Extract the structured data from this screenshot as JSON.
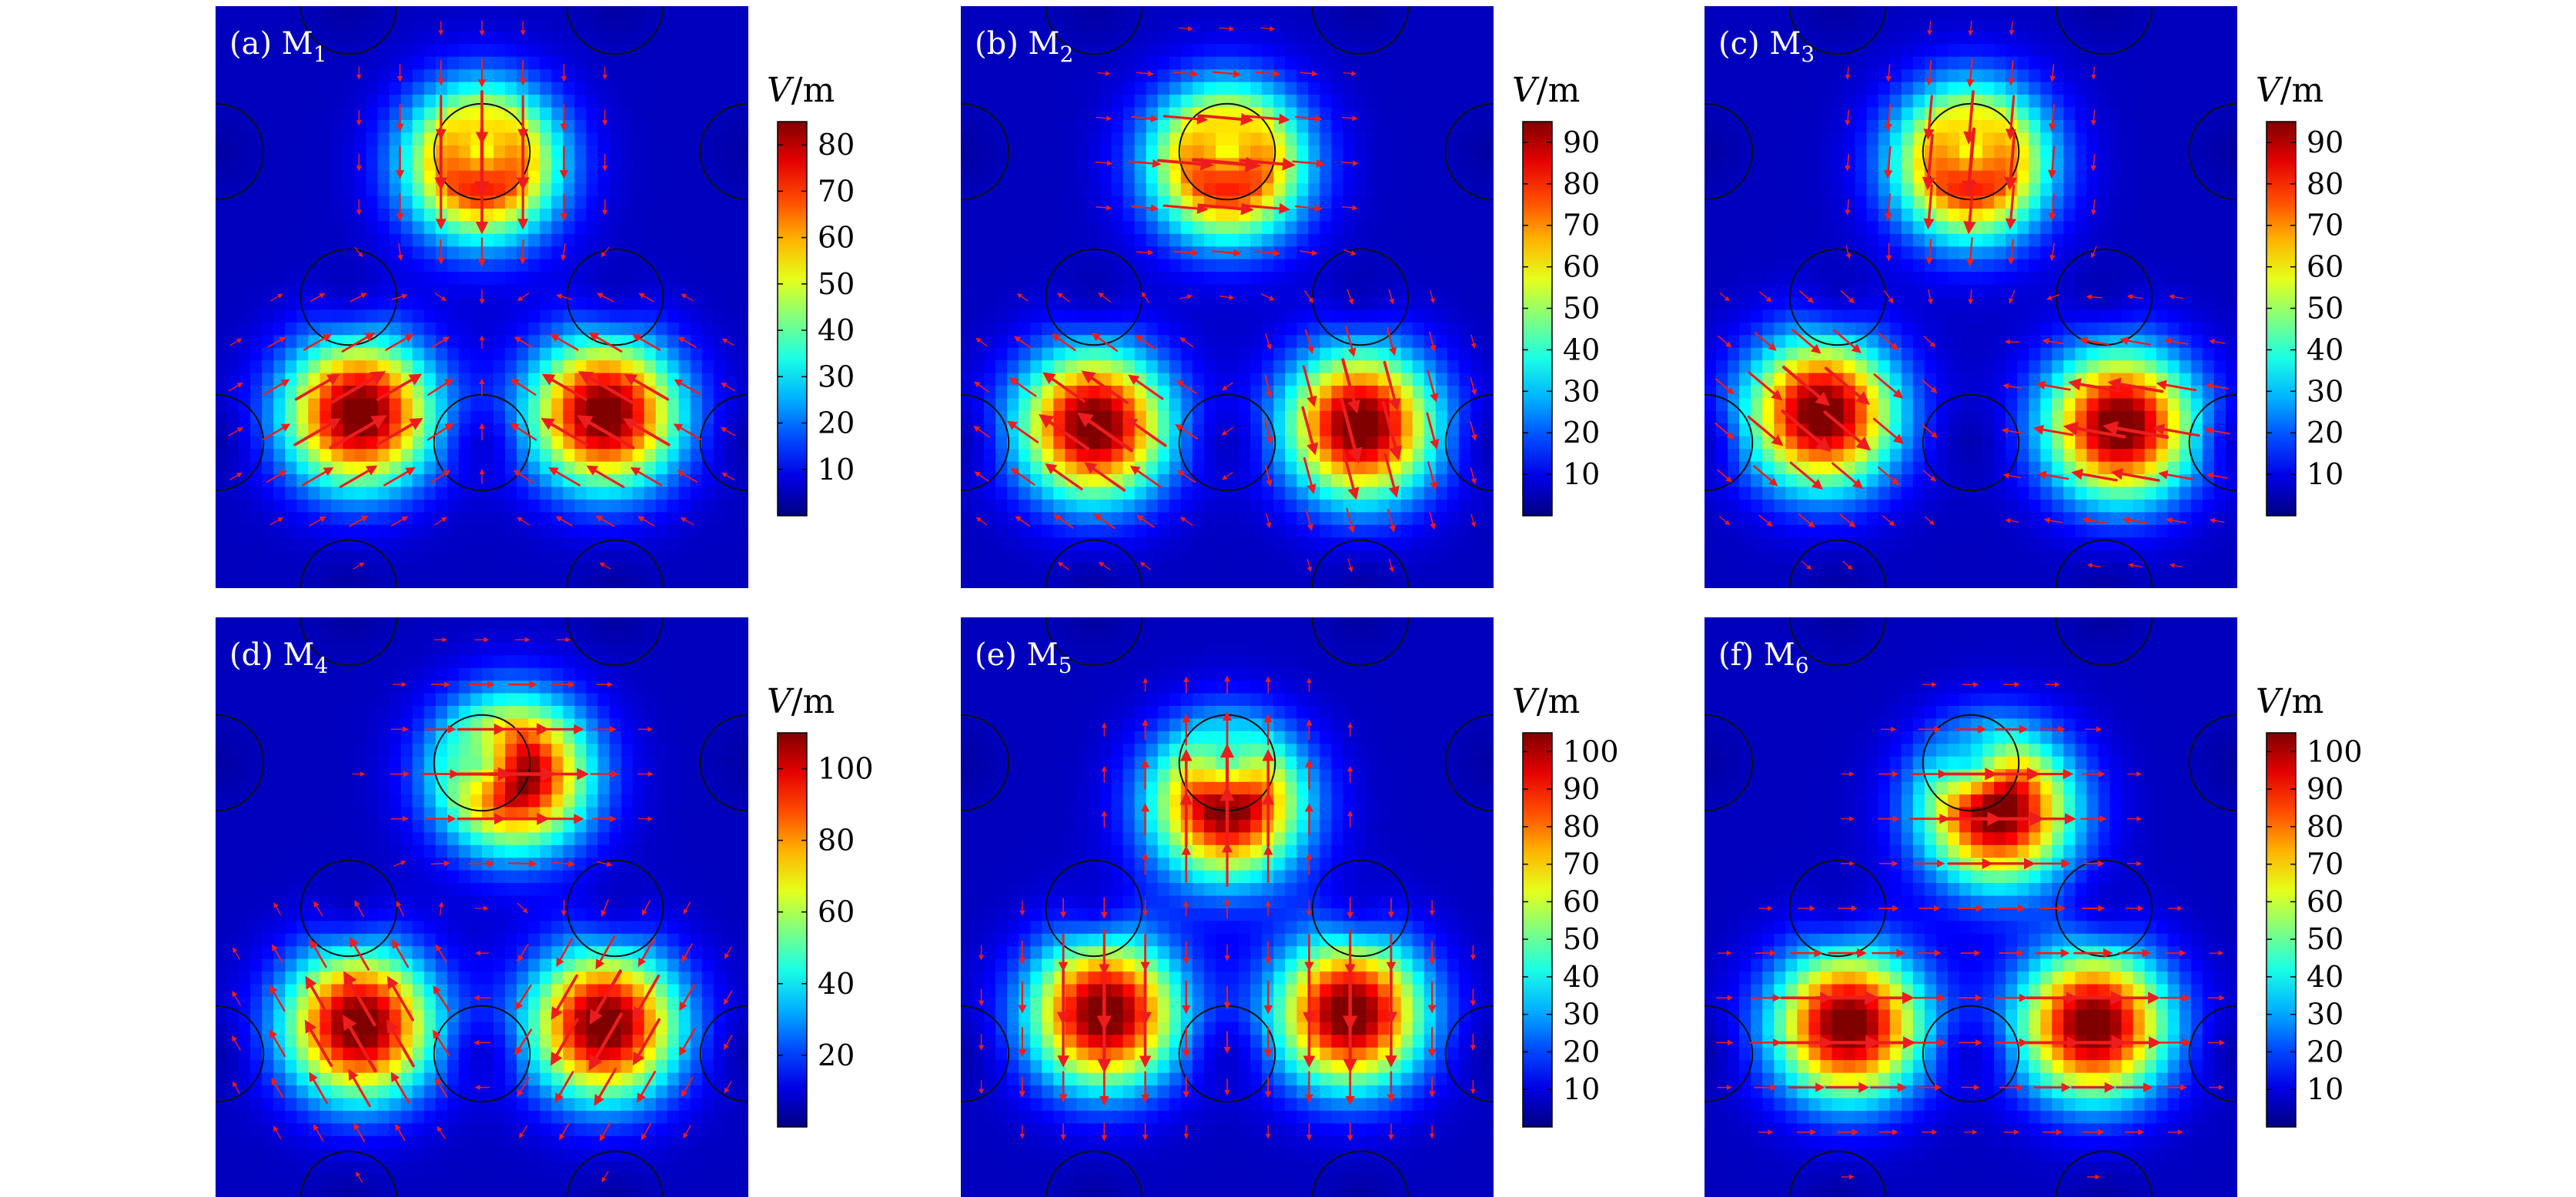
{
  "figure": {
    "colorbar_unit_prefix": "V",
    "colorbar_unit_suffix": "/m"
  },
  "chart_data": [
    {
      "type": "heatmap",
      "panel_label": "(a)",
      "mode_name": "M",
      "mode_index": "1",
      "colorbar_ticks": [
        10,
        20,
        30,
        40,
        50,
        60,
        70,
        80
      ],
      "colorbar_range": [
        0,
        85
      ],
      "lobes": [
        {
          "x": 0.5,
          "y": 0.27,
          "strength": 85,
          "field_angle_deg": 90
        },
        {
          "x": 0.27,
          "y": 0.7,
          "strength": 85,
          "field_angle_deg": -30
        },
        {
          "x": 0.73,
          "y": 0.7,
          "strength": 85,
          "field_angle_deg": 210
        }
      ]
    },
    {
      "type": "heatmap",
      "panel_label": "(b)",
      "mode_name": "M",
      "mode_index": "2",
      "colorbar_ticks": [
        10,
        20,
        30,
        40,
        50,
        60,
        70,
        80,
        90
      ],
      "colorbar_range": [
        0,
        95
      ],
      "lobes": [
        {
          "x": 0.5,
          "y": 0.27,
          "strength": 95,
          "field_angle_deg": 5
        },
        {
          "x": 0.25,
          "y": 0.72,
          "strength": 95,
          "field_angle_deg": 215
        },
        {
          "x": 0.75,
          "y": 0.72,
          "strength": 95,
          "field_angle_deg": 75
        }
      ]
    },
    {
      "type": "heatmap",
      "panel_label": "(c)",
      "mode_name": "M",
      "mode_index": "3",
      "colorbar_ticks": [
        10,
        20,
        30,
        40,
        50,
        60,
        70,
        80,
        90
      ],
      "colorbar_range": [
        0,
        95
      ],
      "lobes": [
        {
          "x": 0.5,
          "y": 0.27,
          "strength": 95,
          "field_angle_deg": 95
        },
        {
          "x": 0.22,
          "y": 0.7,
          "strength": 95,
          "field_angle_deg": 40
        },
        {
          "x": 0.78,
          "y": 0.72,
          "strength": 95,
          "field_angle_deg": 190
        }
      ]
    },
    {
      "type": "heatmap",
      "panel_label": "(d)",
      "mode_name": "M",
      "mode_index": "4",
      "colorbar_ticks": [
        20,
        40,
        60,
        80,
        100
      ],
      "colorbar_range": [
        0,
        110
      ],
      "lobes": [
        {
          "x": 0.56,
          "y": 0.27,
          "strength": 110,
          "field_angle_deg": 0
        },
        {
          "x": 0.27,
          "y": 0.7,
          "strength": 110,
          "field_angle_deg": 240
        },
        {
          "x": 0.73,
          "y": 0.7,
          "strength": 110,
          "field_angle_deg": 120
        }
      ]
    },
    {
      "type": "heatmap",
      "panel_label": "(e)",
      "mode_name": "M",
      "mode_index": "5",
      "colorbar_ticks": [
        10,
        20,
        30,
        40,
        50,
        60,
        70,
        80,
        90,
        100
      ],
      "colorbar_range": [
        0,
        105
      ],
      "lobes": [
        {
          "x": 0.5,
          "y": 0.32,
          "strength": 105,
          "field_angle_deg": 270
        },
        {
          "x": 0.27,
          "y": 0.68,
          "strength": 105,
          "field_angle_deg": 90
        },
        {
          "x": 0.73,
          "y": 0.68,
          "strength": 105,
          "field_angle_deg": 90
        }
      ]
    },
    {
      "type": "heatmap",
      "panel_label": "(f)",
      "mode_name": "M",
      "mode_index": "6",
      "colorbar_ticks": [
        10,
        20,
        30,
        40,
        50,
        60,
        70,
        80,
        90,
        100
      ],
      "colorbar_range": [
        0,
        105
      ],
      "lobes": [
        {
          "x": 0.55,
          "y": 0.33,
          "strength": 105,
          "field_angle_deg": 0
        },
        {
          "x": 0.27,
          "y": 0.7,
          "strength": 105,
          "field_angle_deg": 0
        },
        {
          "x": 0.73,
          "y": 0.7,
          "strength": 105,
          "field_angle_deg": 0
        }
      ]
    }
  ]
}
